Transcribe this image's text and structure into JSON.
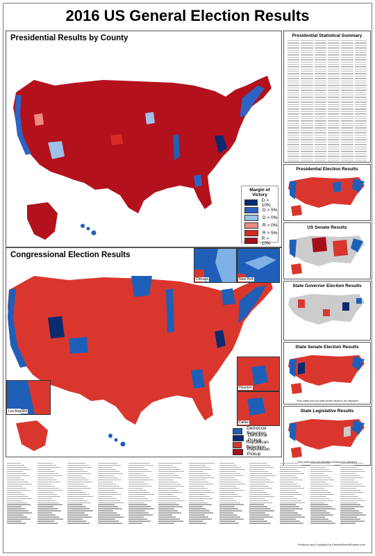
{
  "title": "2016 US General Election Results",
  "presidential_county": {
    "title": "Presidential Results by County",
    "legend_title": "Margin of Victory",
    "legend": [
      {
        "label": "D > 10%",
        "color": "#0b2a6f"
      },
      {
        "label": "D > 5%",
        "color": "#2e63c4"
      },
      {
        "label": "D > 0%",
        "color": "#9ec1ea"
      },
      {
        "label": "R > 0%",
        "color": "#f08a80"
      },
      {
        "label": "R > 5%",
        "color": "#d62c24"
      },
      {
        "label": "R > 10%",
        "color": "#a3101a"
      }
    ]
  },
  "congressional": {
    "title": "Congressional Election Results",
    "insets": [
      "Chicago",
      "New York",
      "Los Angeles",
      "Houston",
      "Dallas"
    ],
    "legend": [
      {
        "label": "Democrat Retention",
        "color": "#1f5fb8"
      },
      {
        "label": "Democrat Pickup",
        "color": "#0b2a6f"
      },
      {
        "label": "Republican Retention",
        "color": "#d9372e"
      },
      {
        "label": "Republican Pickup",
        "color": "#a3101a"
      }
    ]
  },
  "side_panels": [
    {
      "title": "Presidential Statistical Summary"
    },
    {
      "title": "Presidential Election Results"
    },
    {
      "title": "US Senate Results"
    },
    {
      "title": "State Governor Election Results"
    },
    {
      "title": "State Senate Election Results",
      "note": "*Only states that had state senate elections are displayed"
    },
    {
      "title": "State Legislative Results",
      "note": "*Only states that had legislative elections are displayed"
    }
  ],
  "colors": {
    "dem": "#1f5fb8",
    "dem_dark": "#0b2a6f",
    "rep": "#d9372e",
    "rep_dark": "#a3101a",
    "none": "#cccccc"
  },
  "credit": "Produced and Copyright by ElectionResultPosters.com"
}
